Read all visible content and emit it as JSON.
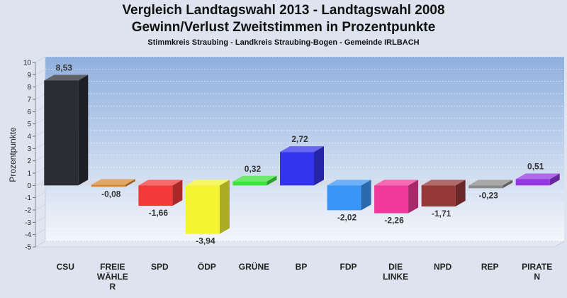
{
  "header": {
    "title": "Vergleich Landtagswahl 2013 - Landtagswahl 2008",
    "subtitle": "Gewinn/Verlust Zweitstimmen in Prozentpunkte",
    "caption": "Stimmkreis Straubing - Landkreis Straubing-Bogen - Gemeinde IRLBACH"
  },
  "chart_data": {
    "type": "bar",
    "title": "Vergleich Landtagswahl 2013 - Landtagswahl 2008",
    "subtitle": "Gewinn/Verlust Zweitstimmen in Prozentpunkte",
    "xlabel": "",
    "ylabel": "Prozentpunkte",
    "ylim": [
      -5,
      10
    ],
    "yticks": [
      10,
      9,
      8,
      7,
      6,
      5,
      4,
      3,
      2,
      1,
      0,
      -1,
      -2,
      -3,
      -4,
      -5
    ],
    "grid": true,
    "categories": [
      [
        "CSU"
      ],
      [
        "FREIE",
        "WÄHLE",
        "R"
      ],
      [
        "SPD"
      ],
      [
        "ÖDP"
      ],
      [
        "GRÜNE"
      ],
      [
        "BP"
      ],
      [
        "FDP"
      ],
      [
        "DIE",
        "LINKE"
      ],
      [
        "NPD"
      ],
      [
        "REP"
      ],
      [
        "PIRATE",
        "N"
      ]
    ],
    "values": [
      8.53,
      -0.08,
      -1.66,
      -3.94,
      0.32,
      2.72,
      -2.02,
      -2.26,
      -1.71,
      -0.23,
      0.51
    ],
    "value_labels": [
      "8,53",
      "-0,08",
      "-1,66",
      "-3,94",
      "0,32",
      "2,72",
      "-2,02",
      "-2,26",
      "-1,71",
      "-0,23",
      "0,51"
    ],
    "colors": [
      "#2b2d33",
      "#d98a35",
      "#f23a3a",
      "#f4f433",
      "#3ee23e",
      "#3434ee",
      "#3a96f6",
      "#f0399a",
      "#973838",
      "#8b8b8b",
      "#9438e2"
    ]
  }
}
